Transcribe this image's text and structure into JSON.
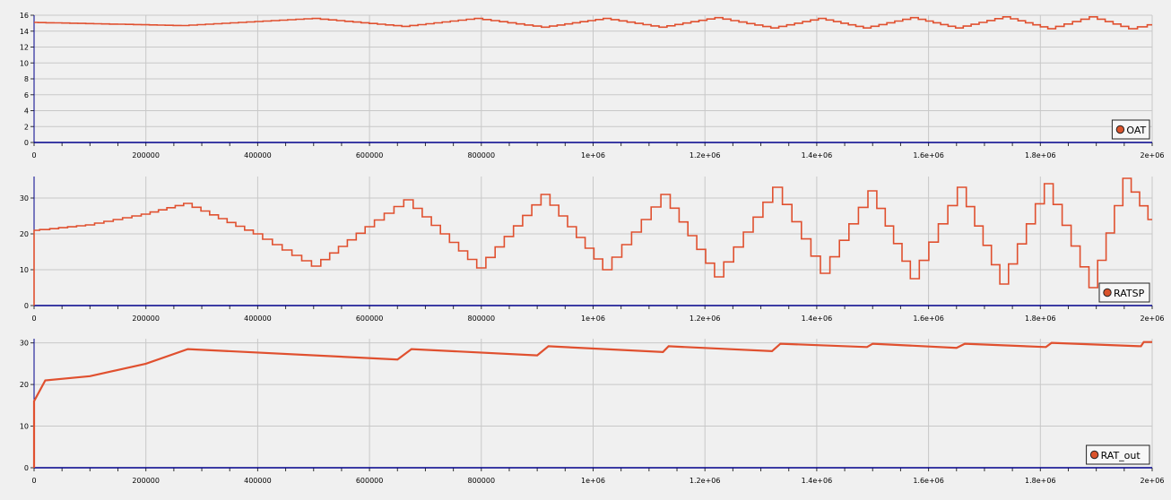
{
  "colors": {
    "background": "#f0f0f0",
    "plot_background": "#f0f0f0",
    "grid": "#c8c8c8",
    "axis": "#00008b",
    "series": "#e0502f",
    "legend_marker": "#d9532c"
  },
  "chart_data": [
    {
      "type": "line",
      "title": "",
      "xlabel": "",
      "ylabel": "",
      "xlim": [
        0,
        2000000
      ],
      "ylim": [
        0,
        16
      ],
      "grid": true,
      "legend_placement": "bottom-right",
      "x_ticks": [
        "0",
        "200000",
        "400000",
        "600000",
        "800000",
        "1e+06",
        "1.2e+06",
        "1.4e+06",
        "1.6e+06",
        "1.8e+06",
        "2e+06"
      ],
      "y_ticks": [
        "0",
        "2",
        "4",
        "6",
        "8",
        "10",
        "12",
        "14",
        "16"
      ],
      "series": [
        {
          "name": "OAT",
          "x": [
            0,
            270000,
            505000,
            665000,
            795000,
            915000,
            1025000,
            1125000,
            1225000,
            1325000,
            1410000,
            1490000,
            1575000,
            1655000,
            1740000,
            1820000,
            1895000,
            1965000,
            2000000
          ],
          "y": [
            15.1,
            14.7,
            15.6,
            14.6,
            15.6,
            14.5,
            15.6,
            14.5,
            15.7,
            14.4,
            15.6,
            14.4,
            15.7,
            14.4,
            15.8,
            14.3,
            15.8,
            14.3,
            14.8
          ]
        }
      ]
    },
    {
      "type": "line",
      "title": "",
      "xlabel": "",
      "ylabel": "",
      "xlim": [
        0,
        2000000
      ],
      "ylim": [
        0,
        36
      ],
      "grid": true,
      "legend_placement": "bottom-right",
      "x_ticks": [
        "0",
        "200000",
        "400000",
        "600000",
        "800000",
        "1e+06",
        "1.2e+06",
        "1.4e+06",
        "1.6e+06",
        "1.8e+06",
        "2e+06"
      ],
      "y_ticks": [
        "0",
        "10",
        "20",
        "30"
      ],
      "series": [
        {
          "name": "RATSP",
          "x": [
            0,
            1,
            20000,
            100000,
            200000,
            275000,
            400000,
            505000,
            600000,
            670000,
            800000,
            915000,
            1025000,
            1130000,
            1225000,
            1330000,
            1415000,
            1500000,
            1575000,
            1660000,
            1735000,
            1815000,
            1895000,
            1955000,
            2000000
          ],
          "y": [
            0,
            21,
            21.2,
            22.5,
            25.5,
            28.5,
            20,
            11,
            22,
            29.5,
            10.5,
            31,
            10,
            31,
            8,
            33,
            9,
            32,
            7.5,
            33,
            6,
            34,
            5,
            35.5,
            24
          ]
        }
      ]
    },
    {
      "type": "line",
      "title": "",
      "xlabel": "",
      "ylabel": "",
      "xlim": [
        0,
        2000000
      ],
      "ylim": [
        0,
        31
      ],
      "grid": true,
      "legend_placement": "bottom-right",
      "x_ticks": [
        "0",
        "200000",
        "400000",
        "600000",
        "800000",
        "1e+06",
        "1.2e+06",
        "1.4e+06",
        "1.6e+06",
        "1.8e+06",
        "2e+06"
      ],
      "y_ticks": [
        "0",
        "10",
        "20",
        "30"
      ],
      "series": [
        {
          "name": "RAT_out",
          "x": [
            0,
            1,
            20000,
            100000,
            200000,
            275000,
            650000,
            675000,
            900000,
            920000,
            1125000,
            1135000,
            1320000,
            1335000,
            1490000,
            1500000,
            1650000,
            1665000,
            1810000,
            1820000,
            1980000,
            1985000,
            2000000
          ],
          "y": [
            0,
            16,
            21,
            22,
            25,
            28.5,
            26,
            28.5,
            27,
            29.2,
            27.8,
            29.2,
            28,
            29.8,
            29,
            29.8,
            28.8,
            29.8,
            29,
            30,
            29.2,
            30.2,
            30.2
          ]
        }
      ]
    }
  ]
}
